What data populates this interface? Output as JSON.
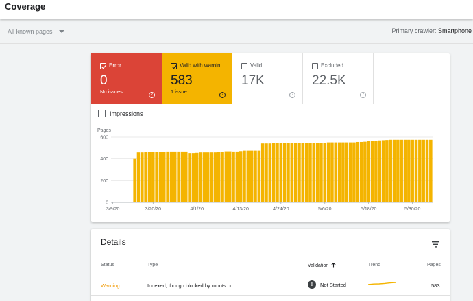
{
  "header": {
    "title": "Coverage"
  },
  "filter": {
    "selected": "All known pages",
    "crawler_label": "Primary crawler:",
    "crawler_value": "Smartphone"
  },
  "tiles": [
    {
      "label": "Error",
      "value": "0",
      "subtext": "No issues",
      "checked": true,
      "color": "#db4437"
    },
    {
      "label": "Valid with warnin...",
      "value": "583",
      "subtext": "1 issue",
      "checked": true,
      "color": "#f4b400"
    },
    {
      "label": "Valid",
      "value": "17K",
      "subtext": "",
      "checked": false,
      "color": "#ffffff"
    },
    {
      "label": "Excluded",
      "value": "22.5K",
      "subtext": "",
      "checked": false,
      "color": "#ffffff"
    }
  ],
  "impressions": {
    "label": "Impressions",
    "checked": false
  },
  "chart_data": {
    "type": "bar",
    "ylabel": "Pages",
    "ylim": [
      0,
      600
    ],
    "yticks": [
      "0",
      "200",
      "400",
      "600"
    ],
    "x_tick_labels": [
      "3/9/20",
      "3/20/20",
      "4/1/20",
      "4/13/20",
      "4/24/20",
      "5/6/20",
      "5/18/20",
      "5/30/20"
    ],
    "x_tick_indices": [
      0,
      11,
      23,
      35,
      46,
      58,
      70,
      82
    ],
    "bar_color": "#f4b400",
    "values": [
      0,
      0,
      0,
      0,
      0,
      0,
      400,
      460,
      460,
      462,
      462,
      464,
      464,
      465,
      466,
      468,
      468,
      468,
      468,
      468,
      468,
      454,
      454,
      456,
      460,
      460,
      460,
      460,
      460,
      462,
      466,
      470,
      470,
      468,
      468,
      472,
      476,
      476,
      476,
      476,
      476,
      542,
      542,
      542,
      544,
      546,
      546,
      546,
      546,
      546,
      546,
      546,
      546,
      546,
      546,
      548,
      548,
      548,
      548,
      552,
      552,
      552,
      552,
      552,
      552,
      552,
      552,
      556,
      556,
      558,
      568,
      568,
      568,
      570,
      572,
      574,
      576,
      576,
      576,
      576,
      576,
      576,
      576,
      576,
      576,
      576,
      576,
      576
    ]
  },
  "details": {
    "title": "Details",
    "columns": {
      "status": "Status",
      "type": "Type",
      "validation": "Validation",
      "trend": "Trend",
      "pages": "Pages"
    },
    "rows": [
      {
        "status": "Warning",
        "type": "Indexed, though blocked by robots.txt",
        "validation": "Not Started",
        "pages": "583",
        "status_color": "#f29900"
      }
    ]
  },
  "icons": {
    "filter": "filter-list-icon",
    "sort": "arrow-upward-icon",
    "help": "help-circle-icon",
    "validation_status": "exclamation-circle-icon"
  }
}
